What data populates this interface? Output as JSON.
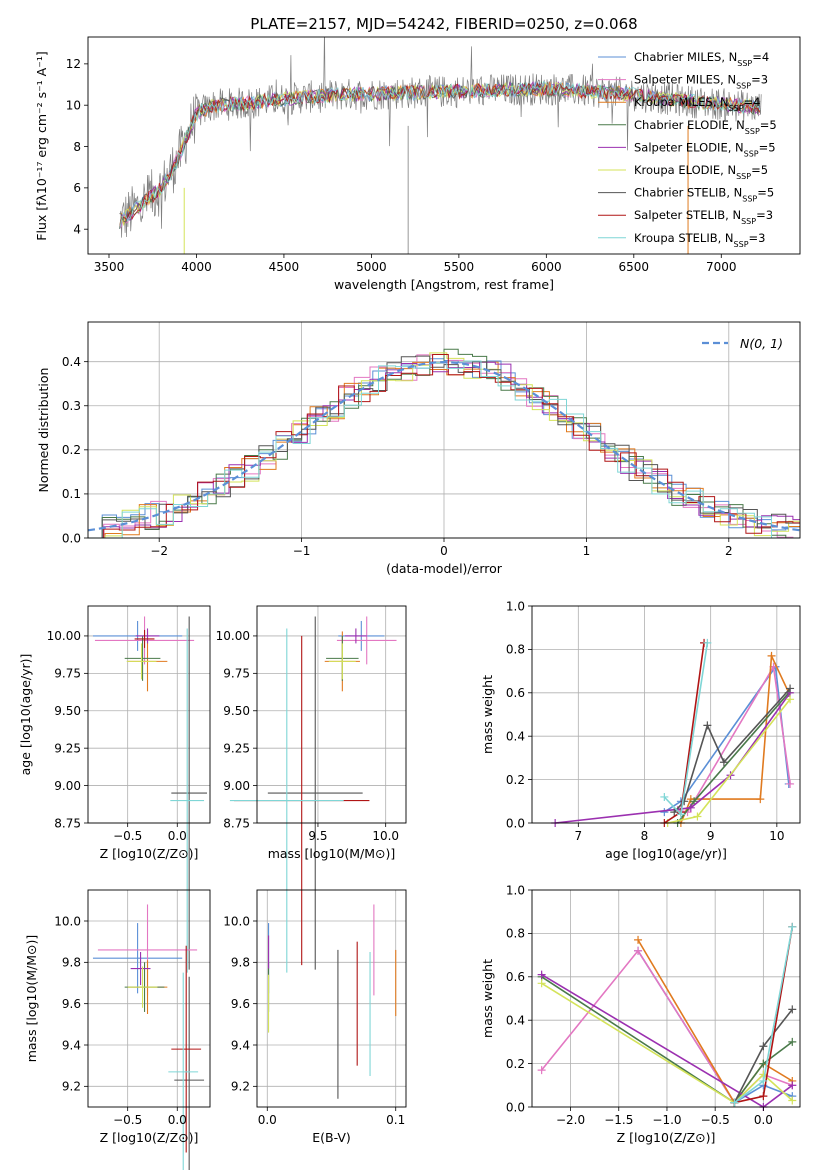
{
  "colors": {
    "Chabrier MILES": "#5b8fd6",
    "Salpeter MILES": "#e377c2",
    "Kroupa MILES": "#e07a1f",
    "Chabrier ELODIE": "#4a7a4a",
    "Salpeter ELODIE": "#9b30b0",
    "Kroupa ELODIE": "#d4e35a",
    "Chabrier STELIB": "#555555",
    "Salpeter STELIB": "#b01515",
    "Kroupa STELIB": "#7fd6d6"
  },
  "chart_data": [
    {
      "id": "spectrum",
      "type": "line",
      "title": "PLATE=2157, MJD=54242, FIBERID=0250, z=0.068",
      "xlabel": "wavelength [Angstrom, rest frame]",
      "ylabel": "Flux [fλ10⁻¹⁷ erg cm⁻² s⁻¹ A⁻¹]",
      "xlim": [
        3380,
        7450
      ],
      "ylim": [
        2.8,
        13.3
      ],
      "xticks": [
        3500,
        4000,
        4500,
        5000,
        5500,
        6000,
        6500,
        7000
      ],
      "yticks": [
        4,
        6,
        8,
        10,
        12
      ],
      "legend_position": "top-right",
      "legend": [
        "Chabrier MILES, N_SSP=4",
        "Salpeter MILES, N_SSP=3",
        "Kroupa MILES, N_SSP=4",
        "Chabrier ELODIE, N_SSP=5",
        "Salpeter ELODIE, N_SSP=5",
        "Kroupa ELODIE, N_SSP=5",
        "Chabrier STELIB, N_SSP=5",
        "Salpeter STELIB, N_SSP=3",
        "Kroupa STELIB, N_SSP=3"
      ],
      "legend_text": [
        {
          "pre": "Chabrier MILES, N",
          "post": "=4"
        },
        {
          "pre": "Salpeter MILES, N",
          "post": "=3"
        },
        {
          "pre": "Kroupa MILES, N",
          "post": "=4"
        },
        {
          "pre": "Chabrier ELODIE, N",
          "post": "=5"
        },
        {
          "pre": "Salpeter ELODIE, N",
          "post": "=5"
        },
        {
          "pre": "Kroupa ELODIE, N",
          "post": "=5"
        },
        {
          "pre": "Chabrier STELIB, N",
          "post": "=5"
        },
        {
          "pre": "Salpeter STELIB, N",
          "post": "=3"
        },
        {
          "pre": "Kroupa STELIB, N",
          "post": "=3"
        }
      ],
      "legend_sub": "SSP",
      "continuum": {
        "x": [
          3550,
          3700,
          3800,
          3900,
          3950,
          4000,
          4100,
          4300,
          4500,
          4800,
          5200,
          5600,
          6000,
          6400,
          6800,
          7200
        ],
        "y": [
          4.3,
          5.3,
          6.0,
          7.5,
          8.6,
          9.6,
          10.0,
          10.1,
          10.3,
          10.5,
          10.6,
          10.7,
          10.8,
          10.6,
          10.2,
          9.9
        ]
      }
    },
    {
      "id": "residuals",
      "type": "line",
      "xlabel": "(data-model)/error",
      "ylabel": "Normed distribution",
      "xlim": [
        -2.5,
        2.5
      ],
      "ylim": [
        0,
        0.49
      ],
      "xticks": [
        -2,
        -1,
        0,
        1,
        2
      ],
      "yticks": [
        0.0,
        0.1,
        0.2,
        0.3,
        0.4
      ],
      "grid": true,
      "legend_position": "top-right",
      "reference_curve": "N(0, 1)"
    },
    {
      "id": "age_vs_Z",
      "type": "scatter",
      "xlabel": "Z [log10(Z/Z⊙)]",
      "ylabel": "age  [log10(age/yr)]",
      "xlim": [
        -0.9,
        0.33
      ],
      "ylim": [
        8.75,
        10.2
      ],
      "xticks": [
        -0.5,
        0.0
      ],
      "yticks": [
        8.75,
        9.0,
        9.25,
        9.5,
        9.75,
        10.0
      ],
      "grid": true,
      "points": [
        {
          "model": "Chabrier MILES",
          "x": -0.4,
          "xerr": 0.45,
          "y": 10.0,
          "yerr": 0.1
        },
        {
          "model": "Salpeter MILES",
          "x": -0.33,
          "xerr": 0.5,
          "y": 9.97,
          "yerr": 0.16
        },
        {
          "model": "Kroupa MILES",
          "x": -0.3,
          "xerr": 0.2,
          "y": 9.83,
          "yerr": 0.2
        },
        {
          "model": "Chabrier ELODIE",
          "x": -0.35,
          "xerr": 0.18,
          "y": 9.85,
          "yerr": 0.15
        },
        {
          "model": "Salpeter ELODIE",
          "x": -0.3,
          "xerr": 0.12,
          "y": 10.0,
          "yerr": 0.05
        },
        {
          "model": "Kroupa ELODIE",
          "x": -0.36,
          "xerr": 0.15,
          "y": 9.83,
          "yerr": 0.12
        },
        {
          "model": "Chabrier STELIB",
          "x": 0.12,
          "xerr": 0.18,
          "y": 8.95,
          "yerr": 1.18
        },
        {
          "model": "Salpeter STELIB",
          "x": -0.33,
          "xerr": 0.1,
          "y": 9.98,
          "yerr": 0.06
        },
        {
          "model": "Kroupa STELIB",
          "x": 0.1,
          "xerr": 0.17,
          "y": 8.9,
          "yerr": 1.15
        }
      ]
    },
    {
      "id": "age_vs_mass",
      "type": "scatter",
      "xlabel": "mass [log10(M/M⊙)]",
      "ylabel": "",
      "xlim": [
        9.05,
        10.15
      ],
      "ylim": [
        8.75,
        10.2
      ],
      "xticks": [
        9.5,
        10.0
      ],
      "yticks": [
        8.75,
        9.0,
        9.25,
        9.5,
        9.75,
        10.0
      ],
      "grid": true,
      "points": [
        {
          "model": "Chabrier MILES",
          "x": 9.82,
          "xerr": 0.17,
          "y": 10.0,
          "yerr": 0.1
        },
        {
          "model": "Salpeter MILES",
          "x": 9.86,
          "xerr": 0.22,
          "y": 9.97,
          "yerr": 0.16
        },
        {
          "model": "Kroupa MILES",
          "x": 9.68,
          "xerr": 0.13,
          "y": 9.83,
          "yerr": 0.2
        },
        {
          "model": "Chabrier ELODIE",
          "x": 9.68,
          "xerr": 0.12,
          "y": 9.85,
          "yerr": 0.15
        },
        {
          "model": "Salpeter ELODIE",
          "x": 9.78,
          "xerr": 0.08,
          "y": 10.0,
          "yerr": 0.05
        },
        {
          "model": "Kroupa ELODIE",
          "x": 9.68,
          "xerr": 0.1,
          "y": 9.83,
          "yerr": 0.12
        },
        {
          "model": "Chabrier STELIB",
          "x": 9.48,
          "xerr": 0.35,
          "y": 8.95,
          "yerr": 1.18
        },
        {
          "model": "Salpeter STELIB",
          "x": 9.38,
          "xerr": 0.5,
          "y": 8.9,
          "yerr": 1.1
        },
        {
          "model": "Kroupa STELIB",
          "x": 9.27,
          "xerr": 0.42,
          "y": 8.9,
          "yerr": 1.15
        }
      ]
    },
    {
      "id": "massweight_vs_age",
      "type": "line",
      "xlabel": "age  [log10(age/yr)]",
      "ylabel": "mass weight",
      "xlim": [
        6.3,
        10.35
      ],
      "ylim": [
        0,
        1
      ],
      "xticks": [
        7,
        8,
        9,
        10
      ],
      "yticks": [
        0.0,
        0.2,
        0.4,
        0.6,
        0.8,
        1.0
      ],
      "grid": true,
      "series": [
        {
          "model": "Chabrier MILES",
          "x": [
            8.3,
            8.55,
            9.98,
            10.18
          ],
          "y": [
            0.05,
            0.1,
            0.72,
            0.18
          ]
        },
        {
          "model": "Salpeter MILES",
          "x": [
            8.5,
            8.65,
            9.95,
            10.2
          ],
          "y": [
            0.06,
            0.05,
            0.72,
            0.18
          ]
        },
        {
          "model": "Kroupa MILES",
          "x": [
            8.55,
            8.7,
            9.75,
            9.92,
            10.18
          ],
          "y": [
            0.0,
            0.11,
            0.11,
            0.77,
            0.6
          ]
        },
        {
          "model": "Chabrier ELODIE",
          "x": [
            8.5,
            8.75,
            10.18
          ],
          "y": [
            0.0,
            0.1,
            0.6
          ]
        },
        {
          "model": "Salpeter ELODIE",
          "x": [
            6.65,
            8.7,
            9.3,
            10.2
          ],
          "y": [
            0.0,
            0.07,
            0.22,
            0.6
          ]
        },
        {
          "model": "Kroupa ELODIE",
          "x": [
            8.35,
            8.8,
            10.2
          ],
          "y": [
            0.0,
            0.03,
            0.57
          ]
        },
        {
          "model": "Chabrier STELIB",
          "x": [
            8.45,
            8.6,
            8.95,
            9.2,
            10.2
          ],
          "y": [
            0.05,
            0.1,
            0.45,
            0.28,
            0.62
          ]
        },
        {
          "model": "Salpeter STELIB",
          "x": [
            8.3,
            8.55,
            8.9
          ],
          "y": [
            0.0,
            0.05,
            0.83
          ]
        },
        {
          "model": "Kroupa STELIB",
          "x": [
            8.3,
            8.55,
            8.95
          ],
          "y": [
            0.12,
            0.04,
            0.83
          ]
        }
      ]
    },
    {
      "id": "mass_vs_Z",
      "type": "scatter",
      "xlabel": "Z [log10(Z/Z⊙)]",
      "ylabel": "mass [log10(M/M⊙)]",
      "xlim": [
        -0.9,
        0.33
      ],
      "ylim": [
        9.1,
        10.15
      ],
      "xticks": [
        -0.5,
        0.0
      ],
      "yticks": [
        9.2,
        9.4,
        9.6,
        9.8,
        10.0
      ],
      "grid": true,
      "points": [
        {
          "model": "Chabrier MILES",
          "x": -0.4,
          "xerr": 0.45,
          "y": 9.82,
          "yerr": 0.17
        },
        {
          "model": "Salpeter MILES",
          "x": -0.3,
          "xerr": 0.5,
          "y": 9.86,
          "yerr": 0.22
        },
        {
          "model": "Kroupa MILES",
          "x": -0.3,
          "xerr": 0.2,
          "y": 9.68,
          "yerr": 0.13
        },
        {
          "model": "Chabrier ELODIE",
          "x": -0.33,
          "xerr": 0.2,
          "y": 9.68,
          "yerr": 0.12
        },
        {
          "model": "Salpeter ELODIE",
          "x": -0.37,
          "xerr": 0.1,
          "y": 9.77,
          "yerr": 0.08
        },
        {
          "model": "Kroupa ELODIE",
          "x": -0.35,
          "xerr": 0.15,
          "y": 9.68,
          "yerr": 0.1
        },
        {
          "model": "Chabrier STELIB",
          "x": 0.12,
          "xerr": 0.15,
          "y": 9.23,
          "yerr": 0.5
        },
        {
          "model": "Salpeter STELIB",
          "x": 0.09,
          "xerr": 0.15,
          "y": 9.38,
          "yerr": 0.5
        },
        {
          "model": "Kroupa STELIB",
          "x": 0.06,
          "xerr": 0.15,
          "y": 9.27,
          "yerr": 0.48
        }
      ]
    },
    {
      "id": "mass_vs_EBV",
      "type": "scatter",
      "xlabel": "E(B-V)",
      "ylabel": "",
      "xlim": [
        -0.008,
        0.108
      ],
      "ylim": [
        9.1,
        10.15
      ],
      "xticks": [
        0.0,
        0.1
      ],
      "yticks": [
        9.2,
        9.4,
        9.6,
        9.8,
        10.0
      ],
      "grid": true,
      "points": [
        {
          "model": "Chabrier MILES",
          "x": 0.001,
          "xerr": 0,
          "y": 9.82,
          "yerr": 0.17
        },
        {
          "model": "Salpeter MILES",
          "x": 0.083,
          "xerr": 0,
          "y": 9.86,
          "yerr": 0.22
        },
        {
          "model": "Kroupa MILES",
          "x": 0.1,
          "xerr": 0,
          "y": 9.7,
          "yerr": 0.16
        },
        {
          "model": "Chabrier ELODIE",
          "x": 0.001,
          "xerr": 0,
          "y": 9.68,
          "yerr": 0.12
        },
        {
          "model": "Salpeter ELODIE",
          "x": 0.001,
          "xerr": 0,
          "y": 9.85,
          "yerr": 0.08
        },
        {
          "model": "Kroupa ELODIE",
          "x": 0.001,
          "xerr": 0,
          "y": 9.6,
          "yerr": 0.14
        },
        {
          "model": "Chabrier STELIB",
          "x": 0.055,
          "xerr": 0,
          "y": 9.5,
          "yerr": 0.36
        },
        {
          "model": "Salpeter STELIB",
          "x": 0.07,
          "xerr": 0,
          "y": 9.6,
          "yerr": 0.3
        },
        {
          "model": "Kroupa STELIB",
          "x": 0.08,
          "xerr": 0,
          "y": 9.55,
          "yerr": 0.3
        }
      ]
    },
    {
      "id": "massweight_vs_Z",
      "type": "line",
      "xlabel": "Z [log10(Z/Z⊙)]",
      "ylabel": "mass weight",
      "xlim": [
        -2.4,
        0.38
      ],
      "ylim": [
        0,
        1
      ],
      "xticks": [
        -2.0,
        -1.5,
        -1.0,
        -0.5,
        0.0
      ],
      "yticks": [
        0.0,
        0.2,
        0.4,
        0.6,
        0.8,
        1.0
      ],
      "grid": true,
      "series": [
        {
          "model": "Chabrier MILES",
          "x": [
            -1.3,
            -0.3,
            0.0,
            0.3
          ],
          "y": [
            0.72,
            0.02,
            0.1,
            0.05
          ]
        },
        {
          "model": "Salpeter MILES",
          "x": [
            -2.3,
            -1.3,
            -0.3,
            0.0,
            0.3
          ],
          "y": [
            0.17,
            0.72,
            0.02,
            0.15,
            0.1
          ]
        },
        {
          "model": "Kroupa MILES",
          "x": [
            -1.3,
            -0.3,
            0.0,
            0.3
          ],
          "y": [
            0.77,
            0.02,
            0.2,
            0.12
          ]
        },
        {
          "model": "Chabrier ELODIE",
          "x": [
            -2.3,
            -0.3,
            0.0,
            0.3
          ],
          "y": [
            0.6,
            0.02,
            0.2,
            0.3
          ]
        },
        {
          "model": "Salpeter ELODIE",
          "x": [
            -2.3,
            0.0,
            0.3
          ],
          "y": [
            0.61,
            0.0,
            0.1
          ]
        },
        {
          "model": "Kroupa ELODIE",
          "x": [
            -2.3,
            -0.3,
            0.0,
            0.3
          ],
          "y": [
            0.57,
            0.02,
            0.15,
            0.03
          ]
        },
        {
          "model": "Chabrier STELIB",
          "x": [
            -0.3,
            0.0,
            0.3
          ],
          "y": [
            0.02,
            0.28,
            0.45
          ]
        },
        {
          "model": "Salpeter STELIB",
          "x": [
            -0.3,
            0.0,
            0.3
          ],
          "y": [
            0.02,
            0.05,
            0.83
          ]
        },
        {
          "model": "Kroupa STELIB",
          "x": [
            -0.3,
            0.0,
            0.3
          ],
          "y": [
            0.02,
            0.12,
            0.83
          ]
        }
      ]
    }
  ]
}
